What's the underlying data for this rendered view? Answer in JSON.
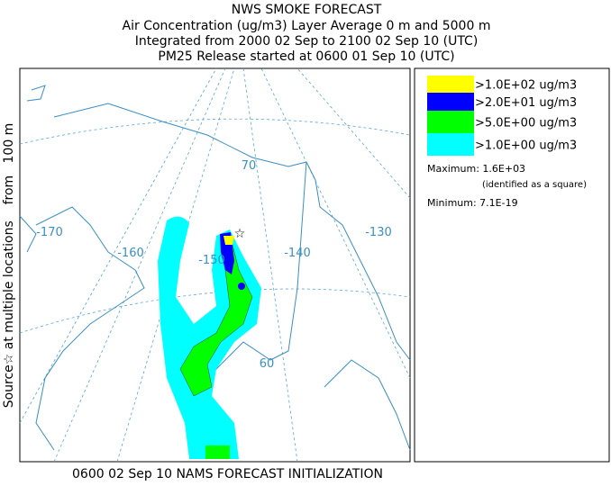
{
  "header": {
    "title": "NWS SMOKE FORECAST",
    "lines": [
      "Air Concentration (ug/m3) Layer Average    0 m and  5000 m",
      "Integrated from 2000 02 Sep to 2100 02 Sep 10 (UTC)",
      "PM25 Release started at 0600 01 Sep 10 (UTC)"
    ]
  },
  "side_label": "Source☆ at multiple locations    from   100 m",
  "map": {
    "labels": [
      "-170",
      "-160",
      "-150",
      "-140",
      "-130",
      "70",
      "60"
    ]
  },
  "legend": {
    "entries": [
      {
        "label": ">1.0E+02 ug/m3",
        "color": "#ffff00"
      },
      {
        "label": ">2.0E+01 ug/m3",
        "color": "#0000ff"
      },
      {
        "label": ">5.0E+00 ug/m3",
        "color": "#00ff00"
      },
      {
        "label": ">1.0E+00 ug/m3",
        "color": "#00ffff"
      }
    ],
    "maximum": "Maximum: 1.6E+03",
    "maximum_note": "(identified as a square)",
    "minimum": "Minimum: 7.1E-19"
  },
  "footer": "0600 02 Sep 10 NAMS FORECAST INITIALIZATION"
}
